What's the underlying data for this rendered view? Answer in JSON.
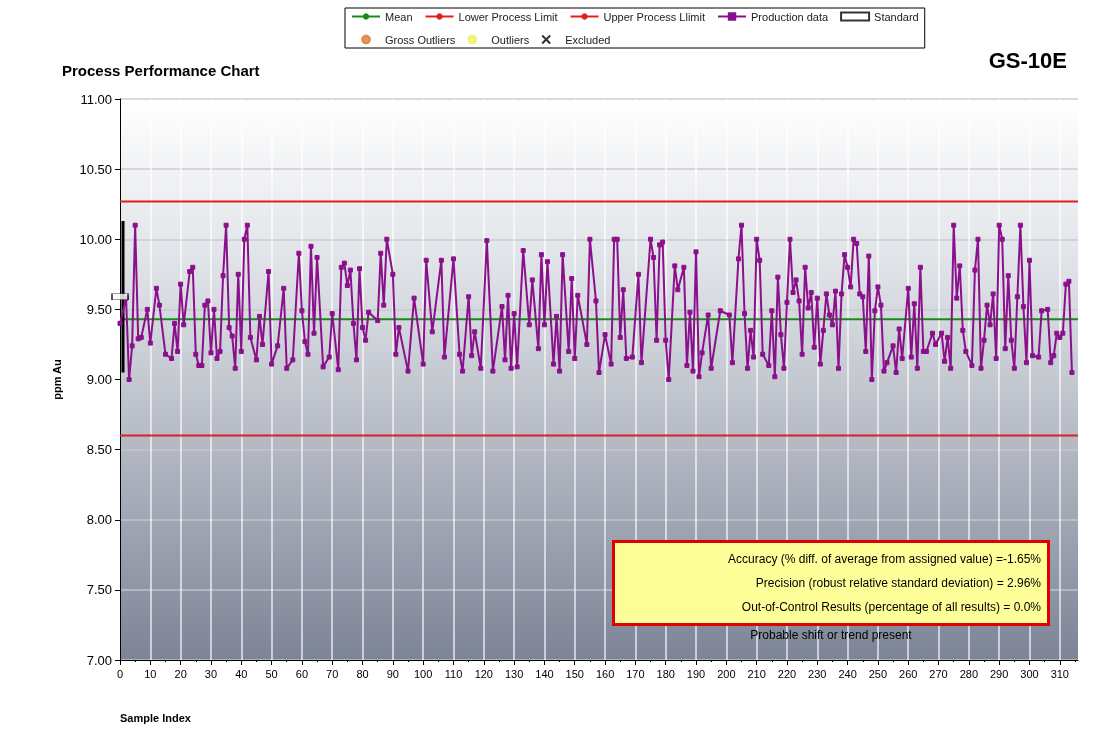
{
  "chart_data": {
    "type": "line",
    "title": "Process Performance Chart",
    "subtitle": "GS-10E",
    "xlabel": "Sample Index",
    "ylabel": "ppm Au",
    "xlim": [
      0,
      316
    ],
    "xticks": [
      0,
      10,
      20,
      30,
      40,
      50,
      60,
      70,
      80,
      90,
      100,
      110,
      120,
      130,
      140,
      150,
      160,
      170,
      180,
      190,
      200,
      210,
      220,
      230,
      240,
      250,
      260,
      270,
      280,
      290,
      300,
      310
    ],
    "ylim": [
      7,
      11
    ],
    "yticks": [
      {
        "value": 7,
        "label": "7.00"
      },
      {
        "value": 7.5,
        "label": "7.50"
      },
      {
        "value": 8,
        "label": "8.00"
      },
      {
        "value": 8.5,
        "label": "8.50"
      },
      {
        "value": 9,
        "label": "9.00"
      },
      {
        "value": 9.5,
        "label": "9.50"
      },
      {
        "value": 10,
        "label": "10.00"
      },
      {
        "value": 10.5,
        "label": "10.50"
      },
      {
        "value": 11,
        "label": "11.00"
      }
    ],
    "grid": true,
    "legend": "top",
    "ref_lines": [
      {
        "axis": "y",
        "value": 9.43,
        "label": "Mean",
        "color": "#1a8a1a"
      },
      {
        "axis": "y",
        "value": 8.6,
        "label": "Lower Process Limit",
        "color": "#e02020"
      },
      {
        "axis": "y",
        "value": 10.27,
        "label": "Upper Process Llimit",
        "color": "#e02020"
      }
    ],
    "series": [
      {
        "name": "Production data",
        "color": "#8b108b",
        "marker": "square",
        "x": [
          0,
          2,
          3,
          4,
          5,
          6,
          7,
          9,
          10,
          12,
          13,
          15,
          17,
          18,
          19,
          20,
          21,
          23,
          24,
          25,
          26,
          27,
          28,
          29,
          30,
          31,
          32,
          33,
          34,
          35,
          36,
          37,
          38,
          39,
          40,
          41,
          42,
          43,
          45,
          46,
          47,
          49,
          50,
          52,
          54,
          55,
          57,
          59,
          60,
          61,
          62,
          63,
          64,
          65,
          67,
          69,
          70,
          72,
          73,
          74,
          75,
          76,
          77,
          78,
          79,
          80,
          81,
          82,
          85,
          86,
          87,
          88,
          90,
          91,
          92,
          95,
          97,
          100,
          101,
          103,
          106,
          107,
          110,
          112,
          113,
          115,
          116,
          117,
          119,
          121,
          123,
          126,
          127,
          128,
          129,
          130,
          131,
          133,
          135,
          136,
          138,
          139,
          140,
          141,
          143,
          144,
          145,
          146,
          148,
          149,
          150,
          151,
          154,
          155,
          157,
          158,
          160,
          162,
          163,
          164,
          165,
          166,
          167,
          169,
          171,
          172,
          175,
          176,
          177,
          178,
          179,
          180,
          181,
          183,
          184,
          186,
          187,
          188,
          189,
          190,
          191,
          192,
          194,
          195,
          198,
          201,
          202,
          204,
          205,
          206,
          207,
          208,
          209,
          210,
          211,
          212,
          214,
          215,
          216,
          217,
          218,
          219,
          220,
          221,
          222,
          223,
          224,
          225,
          226,
          227,
          228,
          229,
          230,
          231,
          232,
          233,
          234,
          235,
          236,
          237,
          238,
          239,
          240,
          241,
          242,
          243,
          244,
          245,
          246,
          247,
          248,
          249,
          250,
          251,
          252,
          253,
          255,
          256,
          257,
          258,
          260,
          261,
          262,
          263,
          264,
          265,
          266,
          268,
          269,
          271,
          272,
          273,
          274,
          275,
          276,
          277,
          278,
          279,
          281,
          282,
          283,
          284,
          285,
          286,
          287,
          288,
          289,
          290,
          291,
          292,
          293,
          294,
          295,
          296,
          297,
          298,
          299,
          300,
          301,
          303,
          304,
          306,
          307,
          308,
          309,
          310,
          311,
          312,
          313,
          314
        ],
        "values": [
          9.4,
          9.58,
          9.0,
          9.24,
          10.1,
          9.29,
          9.3,
          9.5,
          9.26,
          9.65,
          9.53,
          9.18,
          9.15,
          9.4,
          9.2,
          9.68,
          9.39,
          9.77,
          9.8,
          9.18,
          9.1,
          9.1,
          9.53,
          9.56,
          9.19,
          9.5,
          9.15,
          9.2,
          9.74,
          10.1,
          9.37,
          9.31,
          9.08,
          9.75,
          9.2,
          10.0,
          10.1,
          9.3,
          9.14,
          9.45,
          9.25,
          9.77,
          9.11,
          9.24,
          9.65,
          9.08,
          9.14,
          9.9,
          9.49,
          9.27,
          9.18,
          9.95,
          9.33,
          9.87,
          9.09,
          9.16,
          9.47,
          9.07,
          9.8,
          9.83,
          9.67,
          9.78,
          9.4,
          9.14,
          9.79,
          9.37,
          9.28,
          9.48,
          9.42,
          9.9,
          9.53,
          10.0,
          9.75,
          9.18,
          9.37,
          9.06,
          9.58,
          9.11,
          9.85,
          9.34,
          9.85,
          9.16,
          9.86,
          9.18,
          9.06,
          9.59,
          9.17,
          9.34,
          9.08,
          9.99,
          9.06,
          9.52,
          9.14,
          9.6,
          9.08,
          9.47,
          9.09,
          9.92,
          9.39,
          9.71,
          9.22,
          9.89,
          9.39,
          9.84,
          9.11,
          9.45,
          9.06,
          9.89,
          9.2,
          9.72,
          9.15,
          9.6,
          9.25,
          10.0,
          9.56,
          9.05,
          9.32,
          9.11,
          10.0,
          10.0,
          9.3,
          9.64,
          9.15,
          9.16,
          9.75,
          9.12,
          10.0,
          9.87,
          9.28,
          9.96,
          9.98,
          9.28,
          9.0,
          9.81,
          9.64,
          9.8,
          9.1,
          9.48,
          9.06,
          9.91,
          9.02,
          9.19,
          9.46,
          9.08,
          9.49,
          9.46,
          9.12,
          9.86,
          10.1,
          9.47,
          9.08,
          9.35,
          9.16,
          10.0,
          9.85,
          9.18,
          9.1,
          9.49,
          9.02,
          9.73,
          9.32,
          9.08,
          9.55,
          10.0,
          9.62,
          9.71,
          9.56,
          9.18,
          9.8,
          9.51,
          9.62,
          9.23,
          9.58,
          9.11,
          9.35,
          9.61,
          9.46,
          9.39,
          9.63,
          9.08,
          9.61,
          9.89,
          9.8,
          9.66,
          10.0,
          9.97,
          9.61,
          9.59,
          9.2,
          9.88,
          9.0,
          9.49,
          9.66,
          9.53,
          9.06,
          9.12,
          9.24,
          9.05,
          9.36,
          9.15,
          9.65,
          9.16,
          9.54,
          9.08,
          9.8,
          9.2,
          9.2,
          9.33,
          9.25,
          9.33,
          9.13,
          9.3,
          9.08,
          10.1,
          9.58,
          9.81,
          9.35,
          9.2,
          9.1,
          9.78,
          10.0,
          9.08,
          9.28,
          9.53,
          9.39,
          9.61,
          9.15,
          10.1,
          10.0,
          9.22,
          9.74,
          9.28,
          9.08,
          9.59,
          10.1,
          9.52,
          9.12,
          9.85,
          9.17,
          9.16,
          9.49,
          9.5,
          9.12,
          9.17,
          9.33,
          9.3,
          9.33,
          9.68,
          9.7,
          9.05
        ]
      },
      {
        "name": "Standard",
        "color": "#000000",
        "type": "scatter",
        "marker": "square",
        "x": [
          0
        ],
        "values": [
          9.59
        ],
        "errors": [
          [
            9.05,
            10.13
          ]
        ]
      },
      {
        "name": "Gross Outliers",
        "color": "#e07b39",
        "type": "scatter",
        "marker": "circle"
      },
      {
        "name": "Outliers",
        "color": "#f0f060",
        "type": "scatter",
        "marker": "circle"
      },
      {
        "name": "Excluded",
        "color": "#000000",
        "type": "scatter",
        "marker": "cross"
      }
    ],
    "annotations": [
      "Accuracy (% diff. of average from assigned value) =-1.65%",
      "Precision (robust relative standard deviation) = 2.96%",
      "Out-of-Control Results (percentage of all results) = 0.0%",
      "Probable shift or trend present"
    ]
  }
}
